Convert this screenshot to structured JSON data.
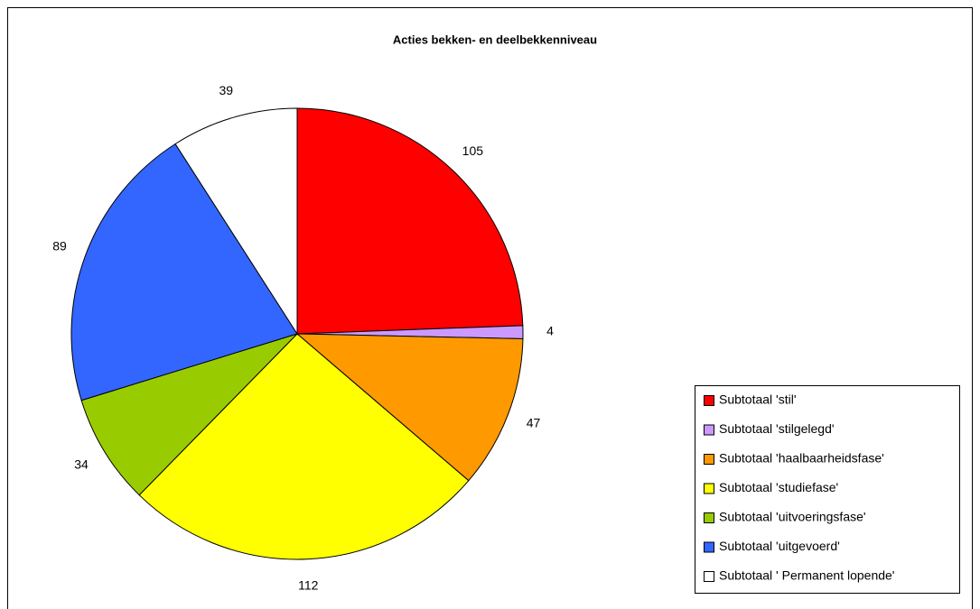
{
  "chart_data": {
    "type": "pie",
    "title": "Acties bekken- en deelbekkenniveau",
    "categories": [
      "Subtotaal 'stil'",
      "Subtotaal 'stilgelegd'",
      "Subtotaal 'haalbaarheidsfase'",
      "Subtotaal 'studiefase'",
      "Subtotaal 'uitvoeringsfase'",
      "Subtotaal 'uitgevoerd'",
      "Subtotaal ' Permanent lopende'"
    ],
    "values": [
      105,
      4,
      47,
      112,
      34,
      89,
      39
    ],
    "colors": [
      "#ff0000",
      "#cc99ff",
      "#ff9900",
      "#ffff00",
      "#99cc00",
      "#3366ff",
      "#ffffff"
    ],
    "legend": "right"
  }
}
